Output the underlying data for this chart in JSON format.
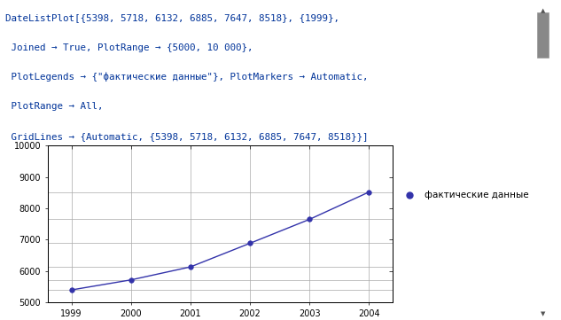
{
  "years": [
    1999,
    2000,
    2001,
    2002,
    2003,
    2004
  ],
  "values": [
    5398,
    5718,
    6132,
    6885,
    7647,
    8518
  ],
  "ylim": [
    5000,
    10000
  ],
  "yticks": [
    5000,
    6000,
    7000,
    8000,
    9000,
    10000
  ],
  "hgridlines": [
    5398,
    5718,
    6132,
    6885,
    7647,
    8518
  ],
  "line_color": "#3333aa",
  "marker_color": "#3333aa",
  "marker_size": 4,
  "legend_label": "фактические данные",
  "code_lines": [
    "DateListPlot[{5398, 5718, 6132, 6885, 7647, 8518}, {1999},",
    " Joined → True, PlotRange → {5000, 10 000},",
    " PlotLegends → {\"фактические данные\"}, PlotMarkers → Automatic,",
    " PlotRange → All,",
    " GridLines → {Automatic, {5398, 5718, 6132, 6885, 7647, 8518}}]"
  ],
  "bg_color": "#ffffff",
  "code_color": "#003399",
  "grid_color": "#aaaaaa",
  "scrollbar_color": "#c8c8c8",
  "scrollbar_indicator": "#888888"
}
